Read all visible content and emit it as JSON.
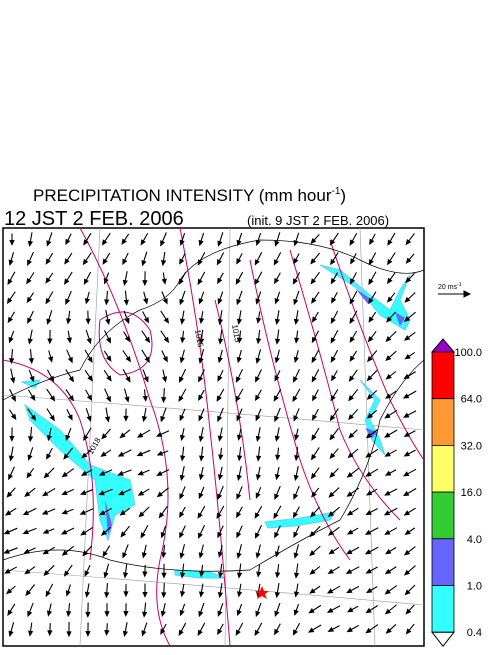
{
  "header": {
    "title": "PRECIPITATION INTENSITY (mm hour",
    "title_superscript": "-1",
    "title_close": ")",
    "valid_time": "12 JST 2 FEB. 2006",
    "init_time": "(init. 9 JST 2 FEB. 2006)"
  },
  "reference_vector": {
    "label": "20 ms",
    "superscript": "-1"
  },
  "contour_labels": [
    "1018",
    "1015",
    "1015"
  ],
  "colorbar": {
    "labels": [
      "100.0",
      "64.0",
      "32.0",
      "16.0",
      "4.0",
      "1.0",
      "0.4"
    ],
    "colors": [
      "#9900cc",
      "#ff0000",
      "#ff9933",
      "#ffff66",
      "#33cc33",
      "#6666ff",
      "#33ffff",
      "#ffffff"
    ]
  }
}
